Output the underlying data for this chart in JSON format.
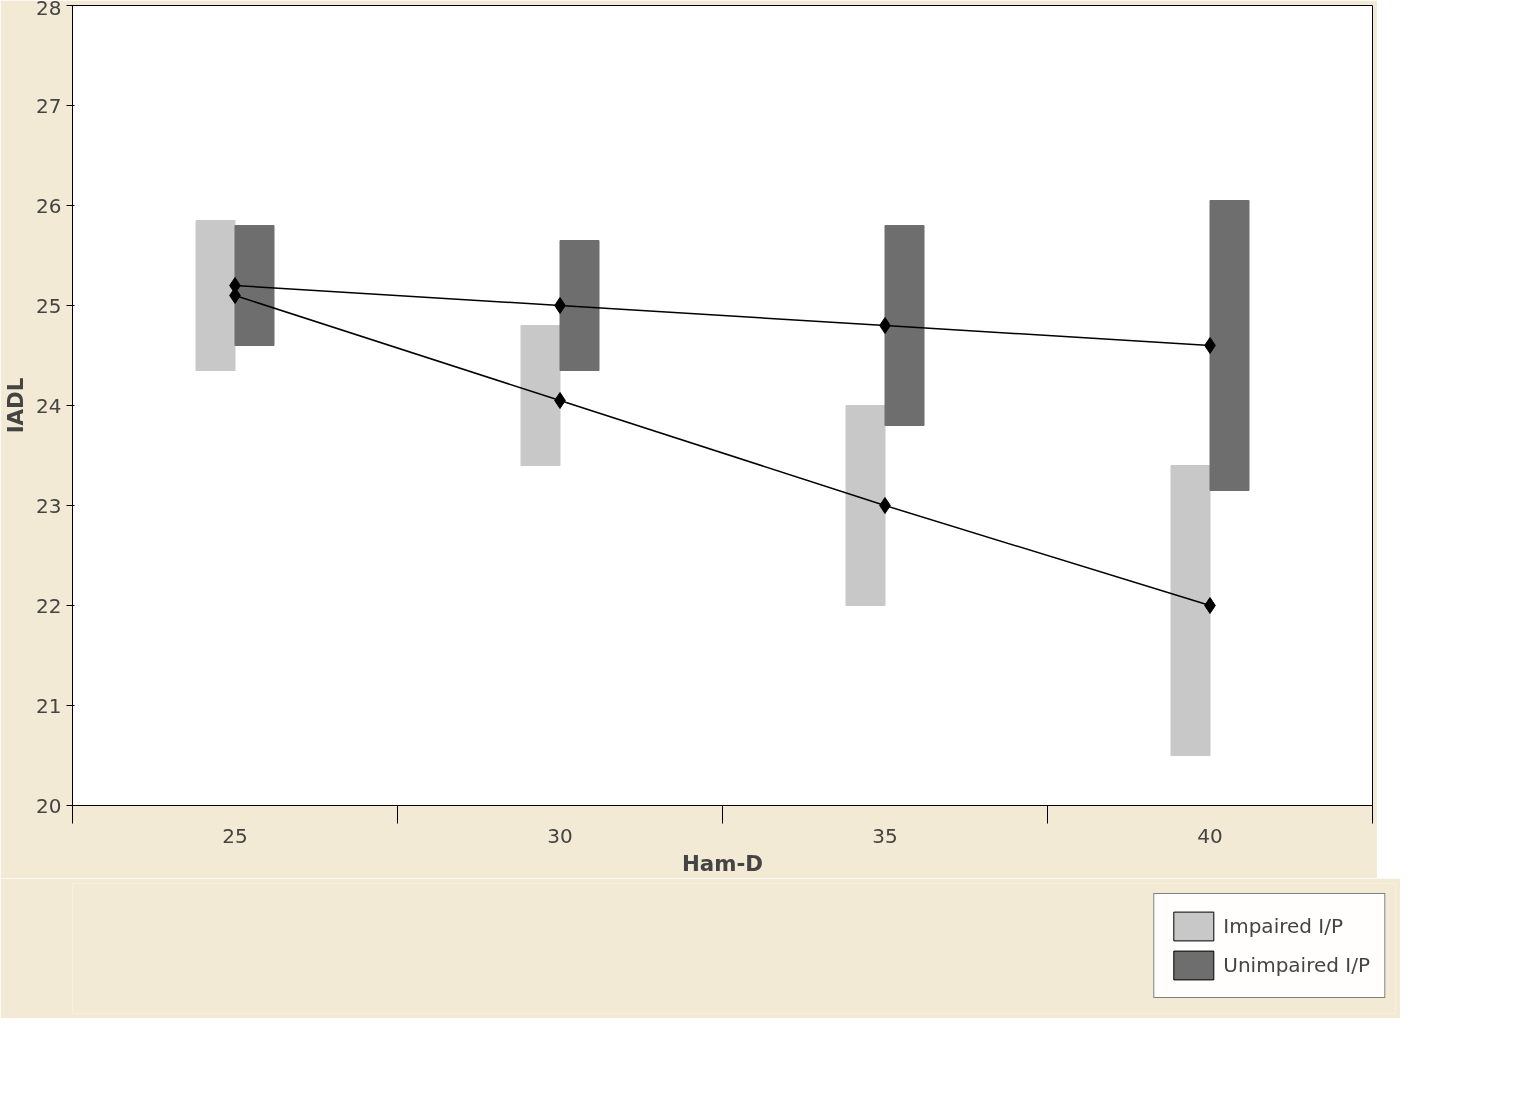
{
  "chart_data": {
    "type": "bar",
    "xlabel": "Ham-D",
    "ylabel": "IADL",
    "categories": [
      "25",
      "30",
      "35",
      "40"
    ],
    "series": [
      {
        "name": "Impaired I/P",
        "color": "#c8c8c8",
        "base": [
          24.35,
          23.4,
          22.0,
          20.5
        ],
        "values": [
          1.5,
          1.4,
          2.0,
          2.9
        ]
      },
      {
        "name": "Unimpaired I/P",
        "color": "#6e6e6e",
        "base": [
          24.6,
          24.35,
          23.8,
          23.15
        ],
        "values": [
          1.2,
          1.3,
          2.0,
          2.9
        ]
      },
      {
        "type": "line",
        "color": "#000000",
        "values": [
          25.1,
          24.05,
          23.0,
          22.0
        ]
      },
      {
        "type": "line",
        "color": "#000000",
        "values": [
          25.2,
          25.0,
          24.8,
          24.6
        ]
      }
    ],
    "ylim": [
      20,
      28
    ],
    "yticks": [
      20,
      21,
      22,
      23,
      24,
      25,
      26,
      27,
      28
    ],
    "grid": false,
    "legend": "bottom right",
    "marker": "diamond",
    "line_style": "solid"
  }
}
